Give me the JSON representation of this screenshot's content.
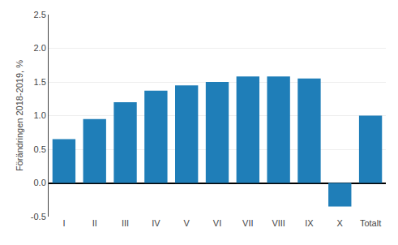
{
  "chart_data": {
    "type": "bar",
    "categories": [
      "I",
      "II",
      "III",
      "IV",
      "V",
      "VI",
      "VII",
      "VIII",
      "IX",
      "X",
      "Totalt"
    ],
    "values": [
      0.65,
      0.95,
      1.2,
      1.37,
      1.45,
      1.5,
      1.58,
      1.58,
      1.55,
      -0.35,
      1.0
    ],
    "color": "#1f7eb8",
    "ylabel": "Förändringen 2018-2019, %",
    "ylim": [
      -0.5,
      2.5
    ],
    "yticks": [
      -0.5,
      {
        "value": 0.0,
        "label": "0.0"
      },
      0.5,
      {
        "value": 1.0,
        "label": "1.0"
      },
      1.5,
      {
        "value": 2.0,
        "label": "2.0"
      },
      2.5
    ],
    "grid": true
  }
}
